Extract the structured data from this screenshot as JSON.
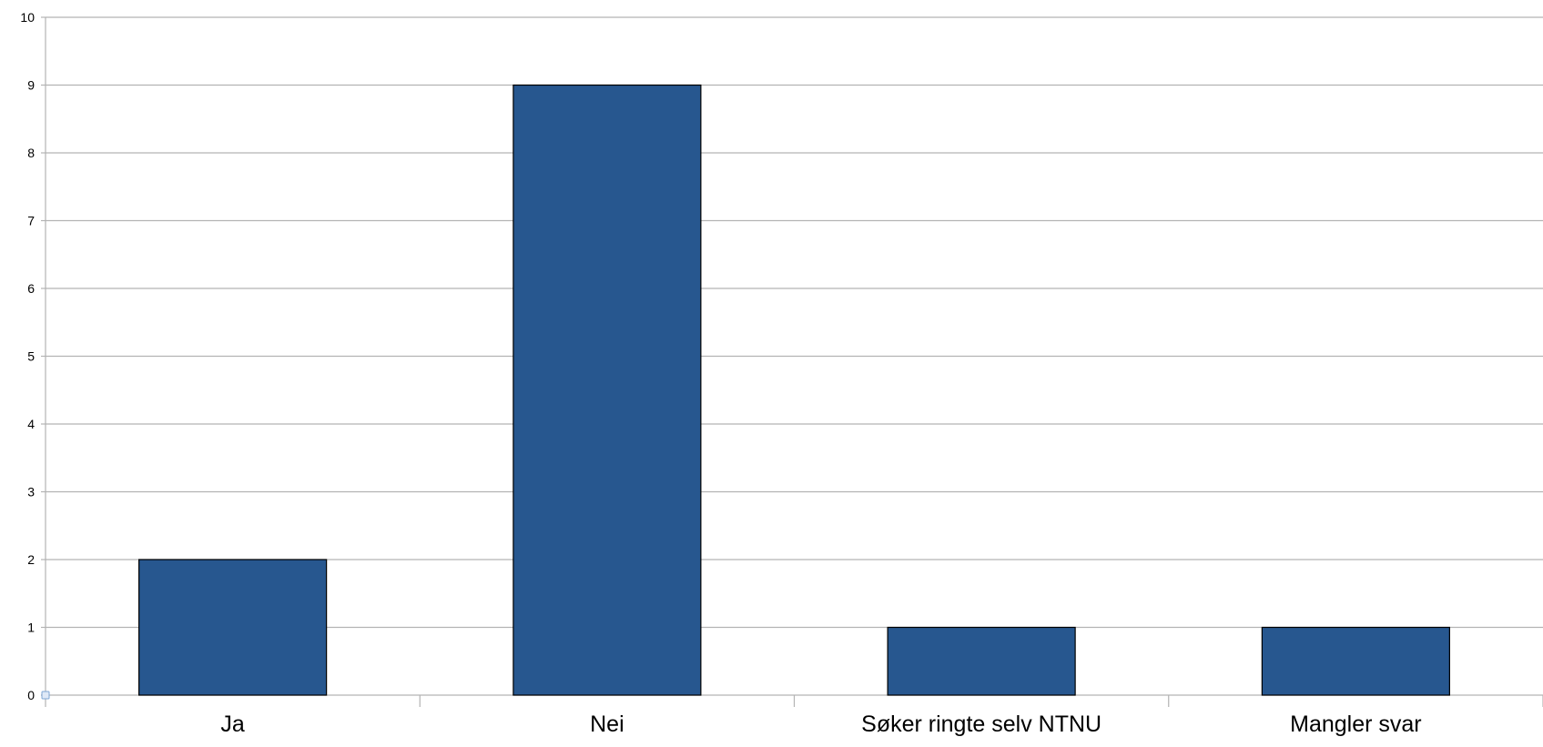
{
  "chart_data": {
    "type": "bar",
    "categories": [
      "Ja",
      "Nei",
      "Søker ringte selv NTNU",
      "Mangler svar"
    ],
    "values": [
      2,
      9,
      1,
      1
    ],
    "ylim": [
      0,
      10
    ],
    "yticks": [
      "0",
      "1",
      "2",
      "3",
      "4",
      "5",
      "6",
      "7",
      "8",
      "9",
      "10"
    ],
    "grid": true,
    "legend": "none",
    "colors": {
      "bar": "#27578F",
      "grid": "#B3B3B3"
    }
  }
}
